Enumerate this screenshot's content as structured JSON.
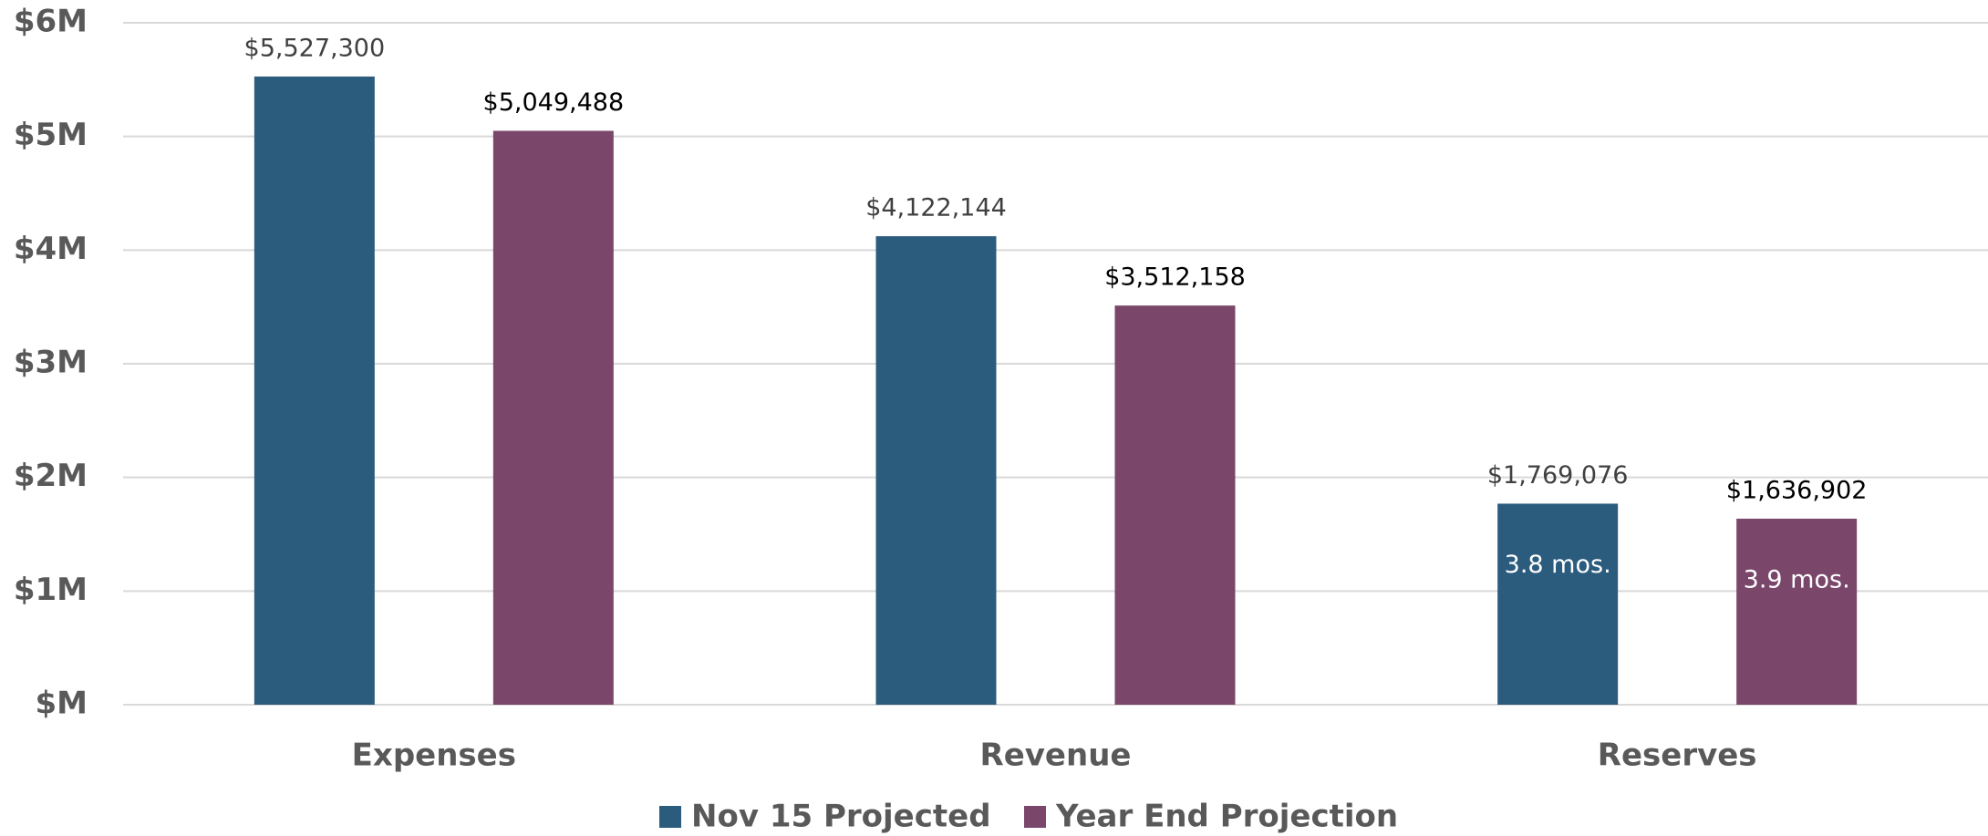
{
  "chart_data": {
    "type": "bar",
    "categories": [
      "Expenses",
      "Revenue",
      "Reserves"
    ],
    "series": [
      {
        "name": "Nov 15 Projected",
        "color": "#2b5c7e",
        "values": [
          5527300,
          4122144,
          1769076
        ],
        "value_labels": [
          "$5,527,300",
          "$4,122,144",
          "$1,769,076"
        ],
        "inner_labels": [
          null,
          null,
          "3.8 mos."
        ]
      },
      {
        "name": "Year End Projection",
        "color": "#7a476b",
        "values": [
          5049488,
          3512158,
          1636902
        ],
        "value_labels": [
          "$5,049,488",
          "$3,512,158",
          "$1,636,902"
        ],
        "inner_labels": [
          null,
          null,
          "3.9 mos."
        ]
      }
    ],
    "ylim": [
      0,
      6000000
    ],
    "yticks": [
      {
        "value": 0,
        "label": "$M"
      },
      {
        "value": 1000000,
        "label": "$1M"
      },
      {
        "value": 2000000,
        "label": "$2M"
      },
      {
        "value": 3000000,
        "label": "$3M"
      },
      {
        "value": 4000000,
        "label": "$4M"
      },
      {
        "value": 5000000,
        "label": "$5M"
      },
      {
        "value": 6000000,
        "label": "$6M"
      }
    ],
    "grid": true,
    "legend": "bottom"
  }
}
